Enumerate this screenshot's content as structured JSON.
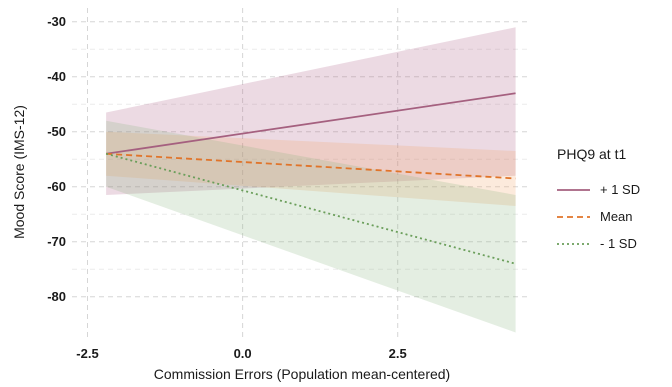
{
  "chart_data": {
    "type": "line",
    "title": "",
    "xlabel": "Commission Errors (Population mean-centered)",
    "ylabel": "Mood Score (IMS-12)",
    "xlim": [
      -2.75,
      4.6
    ],
    "ylim": [
      -87.5,
      -27.5
    ],
    "xticks": [
      -2.5,
      0.0,
      2.5
    ],
    "xtick_labels": [
      "-2.5",
      "0.0",
      "2.5"
    ],
    "yticks": [
      -80,
      -70,
      -60,
      -50,
      -40,
      -30
    ],
    "ytick_labels": [
      "-80",
      "-70",
      "-60",
      "-50",
      "-40",
      "-30"
    ],
    "grid": true,
    "legend": {
      "title": "PHQ9 at t1",
      "position": "right"
    },
    "series": [
      {
        "name": "+ 1 SD",
        "color": "#a5607f",
        "band_color": "#a8587f",
        "dash": "solid",
        "x": [
          -2.2,
          4.4
        ],
        "y": [
          -54,
          -43
        ],
        "lower": [
          -61.5,
          -58
        ],
        "upper": [
          -46.5,
          -31
        ]
      },
      {
        "name": "Mean",
        "color": "#e0742a",
        "band_color": "#f0a060",
        "dash": "dashed",
        "x": [
          -2.2,
          4.4
        ],
        "y": [
          -54,
          -58.5
        ],
        "lower": [
          -58,
          -63.5
        ],
        "upper": [
          -50,
          -53.5
        ]
      },
      {
        "name": "- 1 SD",
        "color": "#6a9e5a",
        "band_color": "#86b07a",
        "dash": "dotted",
        "x": [
          -2.2,
          4.4
        ],
        "y": [
          -54,
          -74
        ],
        "lower": [
          -60,
          -86.5
        ],
        "upper": [
          -48,
          -61.5
        ]
      }
    ]
  }
}
